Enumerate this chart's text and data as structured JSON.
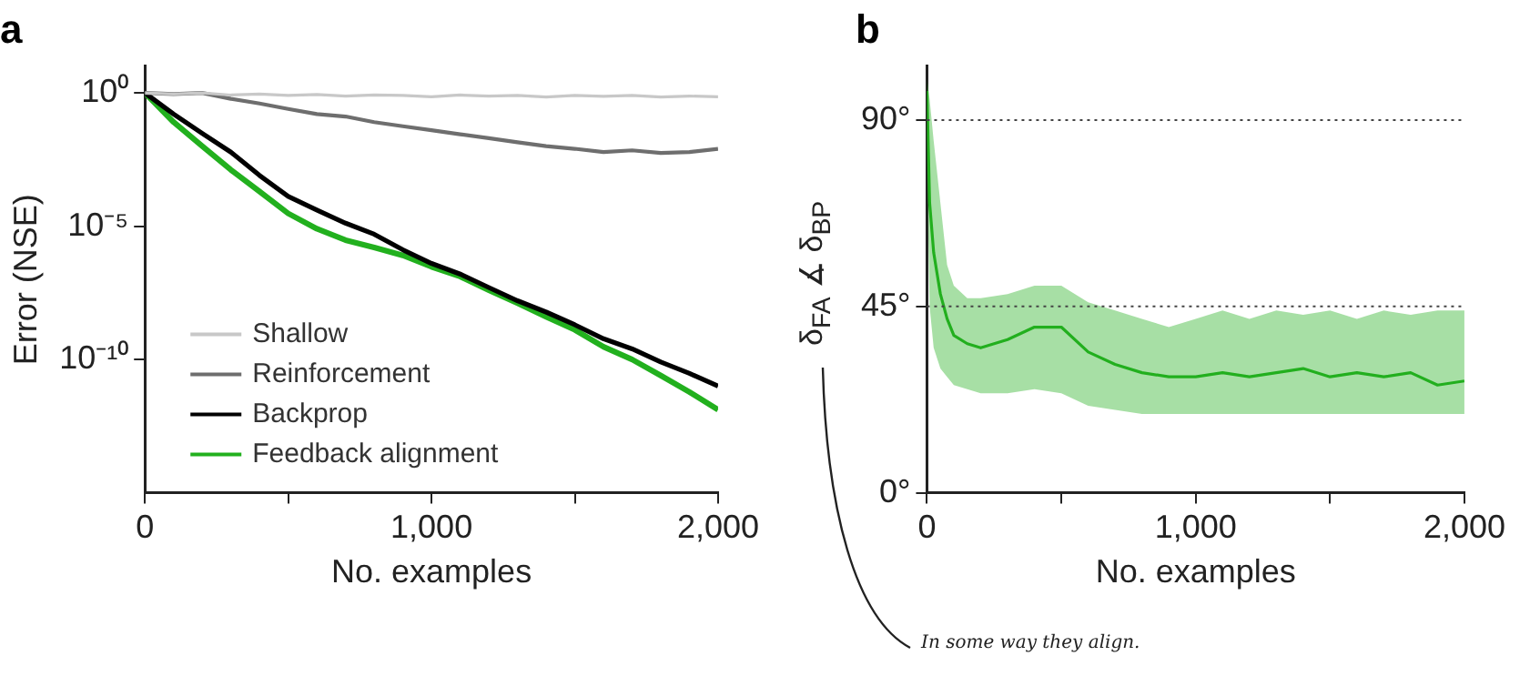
{
  "chart_data": [
    {
      "type": "line",
      "title": "a",
      "xlabel": "No. examples",
      "ylabel": "Error (NSE)",
      "x": [
        0,
        100,
        200,
        300,
        400,
        500,
        600,
        700,
        800,
        900,
        1000,
        1100,
        1200,
        1300,
        1400,
        1500,
        1600,
        1700,
        1800,
        1900,
        2000
      ],
      "series": [
        {
          "name": "Shallow",
          "color": "#c8c8c8",
          "values": [
            1,
            0.9,
            1,
            0.83,
            0.9,
            0.8,
            0.87,
            0.76,
            0.83,
            0.8,
            0.72,
            0.83,
            0.76,
            0.8,
            0.7,
            0.8,
            0.74,
            0.8,
            0.7,
            0.76,
            0.72
          ]
        },
        {
          "name": "Reinforcement",
          "color": "#6e6e6e",
          "values": [
            1,
            0.9,
            1,
            0.6,
            0.4,
            0.25,
            0.16,
            0.13,
            0.08,
            0.056,
            0.04,
            0.028,
            0.02,
            0.014,
            0.01,
            0.008,
            0.006,
            0.007,
            0.0056,
            0.006,
            0.008
          ]
        },
        {
          "name": "Backprop",
          "color": "#000000",
          "values": [
            1,
            0.16,
            0.03,
            0.006,
            0.0008,
            0.00013,
            4e-05,
            1.3e-05,
            5e-06,
            1.3e-06,
            4e-07,
            1.6e-07,
            5e-08,
            1.6e-08,
            6e-09,
            2e-09,
            6e-10,
            2.5e-10,
            8e-11,
            3e-11,
            1e-11
          ]
        },
        {
          "name": "Feedback alignment",
          "color": "#22b01e",
          "values": [
            1,
            0.08,
            0.01,
            0.0013,
            0.0002,
            3e-05,
            8e-06,
            3e-06,
            1.6e-06,
            8e-07,
            3e-07,
            1.3e-07,
            4e-08,
            1.3e-08,
            4e-09,
            1.3e-09,
            3e-10,
            1e-10,
            2.5e-11,
            6e-12,
            1.3e-12
          ]
        }
      ],
      "log": "y",
      "xlim": [
        0,
        2000
      ],
      "xticks": [
        0,
        {
          "value": 500,
          "label": null
        },
        {
          "value": 1000,
          "label": "1,000"
        },
        {
          "value": 1500,
          "label": null
        },
        {
          "value": 2000,
          "label": "2,000"
        }
      ],
      "ylim": [
        1e-15,
        10
      ],
      "yticks": [
        {
          "value": 1,
          "label": "10⁰"
        },
        {
          "value": 1e-05,
          "label": "10⁻⁵"
        },
        {
          "value": 1e-10,
          "label": "10⁻¹⁰"
        }
      ],
      "grid": false,
      "legend": "bottom left",
      "marker": "none",
      "line_style": "solid"
    },
    {
      "type": "line",
      "title": "b",
      "xlabel": "No. examples",
      "ylabel": "δ$_{FA}$ ∡ δ$_{BP}$",
      "x": [
        0,
        10,
        25,
        50,
        75,
        100,
        150,
        200,
        300,
        400,
        500,
        600,
        700,
        800,
        900,
        1000,
        1100,
        1200,
        1300,
        1400,
        1500,
        1600,
        1700,
        1800,
        1900,
        2000
      ],
      "series": [
        {
          "color": "#22b01e",
          "values": [
            97,
            70,
            58,
            48,
            42,
            38,
            36,
            35,
            37,
            40,
            40,
            34,
            31,
            29,
            28,
            28,
            29,
            28,
            29,
            30,
            28,
            29,
            28,
            29,
            26,
            27
          ],
          "lower": [
            80,
            45,
            35,
            30,
            28,
            26,
            25,
            24,
            24,
            25,
            24,
            21,
            20,
            19,
            19,
            19,
            19,
            19,
            19,
            19,
            19,
            19,
            19,
            19,
            19,
            19
          ],
          "upper": [
            100,
            95,
            85,
            70,
            55,
            50,
            47,
            47,
            48,
            50,
            50,
            46,
            44,
            42,
            40,
            42,
            44,
            42,
            44,
            43,
            44,
            42,
            44,
            43,
            44,
            44
          ]
        }
      ],
      "xlim": [
        0,
        2000
      ],
      "xticks": [
        0,
        {
          "value": 500,
          "label": null
        },
        {
          "value": 1000,
          "label": "1,000"
        },
        {
          "value": 1500,
          "label": null
        },
        {
          "value": 2000,
          "label": "2,000"
        }
      ],
      "ylim": [
        0,
        103
      ],
      "yticks": [
        {
          "value": 0,
          "label": "0°"
        },
        {
          "value": 45,
          "label": "45°"
        },
        {
          "value": 90,
          "label": "90°"
        }
      ],
      "ref_lines": [
        {
          "axis": "y",
          "value": 90,
          "color": "#444444",
          "line_style": "dotted"
        },
        {
          "axis": "y",
          "value": 45,
          "color": "#444444",
          "line_style": "dotted"
        }
      ],
      "annotations": [
        "In some way they align."
      ],
      "grid": false,
      "legend": false,
      "marker": "none",
      "line_style": "solid"
    }
  ]
}
